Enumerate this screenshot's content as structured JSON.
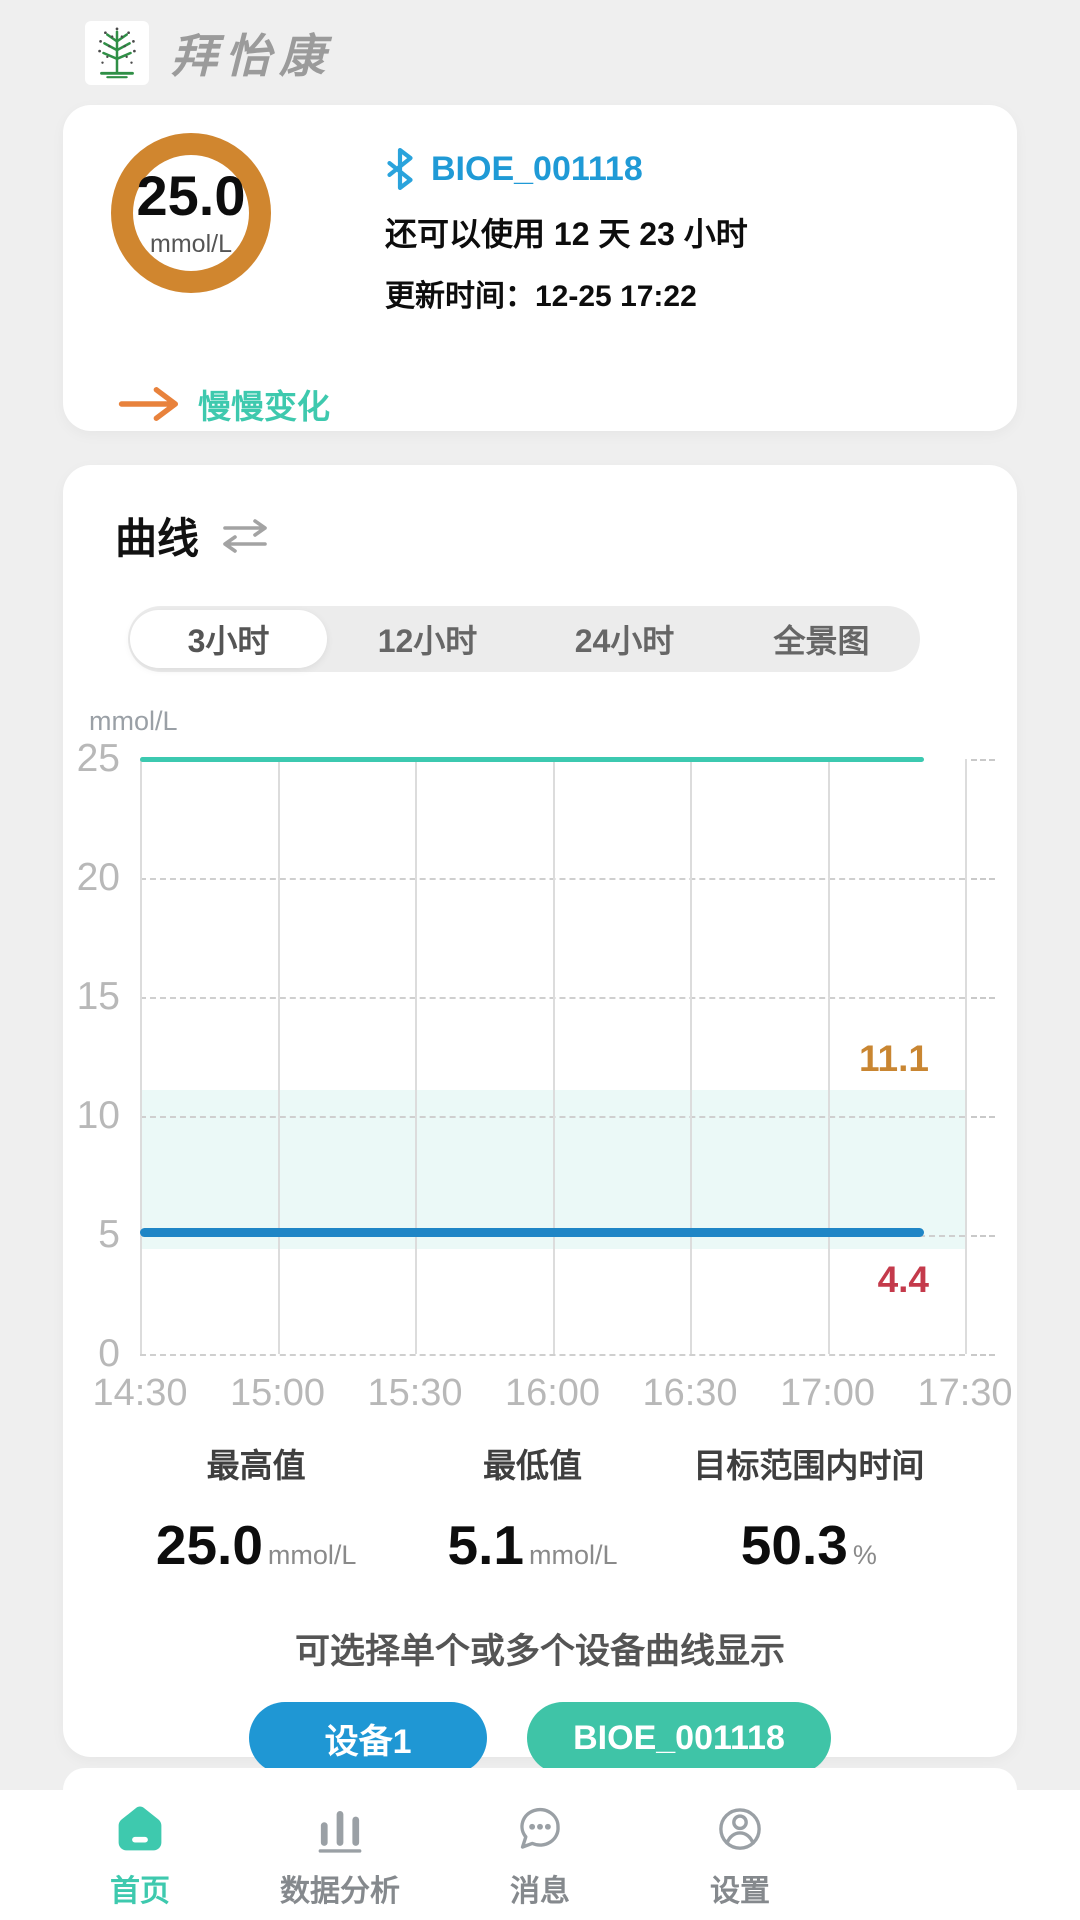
{
  "app": {
    "title": "拜怡康",
    "logo_icon": "tree-logo-icon"
  },
  "status_card": {
    "reading": "25.0",
    "unit": "mmol/L",
    "bluetooth_icon": "bluetooth-icon",
    "device_name": "BIOE_001118",
    "remaining": "还可以使用 12 天 23 小时",
    "updated": "更新时间：12-25 17:22",
    "trend_arrow_icon": "trend-arrow-icon",
    "trend_label": "慢慢变化",
    "ring_color": "#d0862f",
    "trend_color": "#3ec9ae",
    "device_color": "#1f9ad6"
  },
  "curve_card": {
    "title": "曲线",
    "swap_icon": "swap-icon",
    "tabs": [
      {
        "label": "3小时",
        "active": true
      },
      {
        "label": "12小时",
        "active": false
      },
      {
        "label": "24小时",
        "active": false
      },
      {
        "label": "全景图",
        "active": false
      }
    ],
    "axis_unit": "mmol/L",
    "stats": [
      {
        "label": "最高值",
        "value": "25.0",
        "unit": "mmol/L"
      },
      {
        "label": "最低值",
        "value": "5.1",
        "unit": "mmol/L"
      },
      {
        "label": "目标范围内时间",
        "value": "50.3",
        "unit": "%"
      }
    ],
    "hint": "可选择单个或多个设备曲线显示",
    "devices": [
      {
        "label": "设备1",
        "color": "#1f97d4"
      },
      {
        "label": "BIOE_001118",
        "color": "#3fc4a7"
      }
    ]
  },
  "chart_data": {
    "type": "line",
    "title": "",
    "ylabel": "mmol/L",
    "xlabel": "",
    "ylim": [
      0,
      25
    ],
    "y_ticks": [
      0,
      5,
      10,
      15,
      20,
      25
    ],
    "x_ticks": [
      "14:30",
      "15:00",
      "15:30",
      "16:00",
      "16:30",
      "17:00",
      "17:30"
    ],
    "grid": true,
    "target_range": {
      "low": 4.4,
      "high": 11.1,
      "low_color": "#c43a4b",
      "high_color": "#c98632",
      "fill": "rgba(63,200,180,0.10)"
    },
    "series": [
      {
        "name": "BIOE_001118",
        "constant_value": 25.0,
        "color": "#3cc9b0",
        "thickness": 5
      },
      {
        "name": "设备1",
        "constant_value": 5.1,
        "color": "#1f86c6",
        "thickness": 9
      }
    ],
    "series_end_frac": 0.95
  },
  "nav": {
    "items": [
      {
        "label": "首页",
        "icon": "home-icon",
        "active": true
      },
      {
        "label": "数据分析",
        "icon": "bar-chart-icon",
        "active": false
      },
      {
        "label": "消息",
        "icon": "chat-icon",
        "active": false
      },
      {
        "label": "设置",
        "icon": "user-icon",
        "active": false
      }
    ]
  }
}
